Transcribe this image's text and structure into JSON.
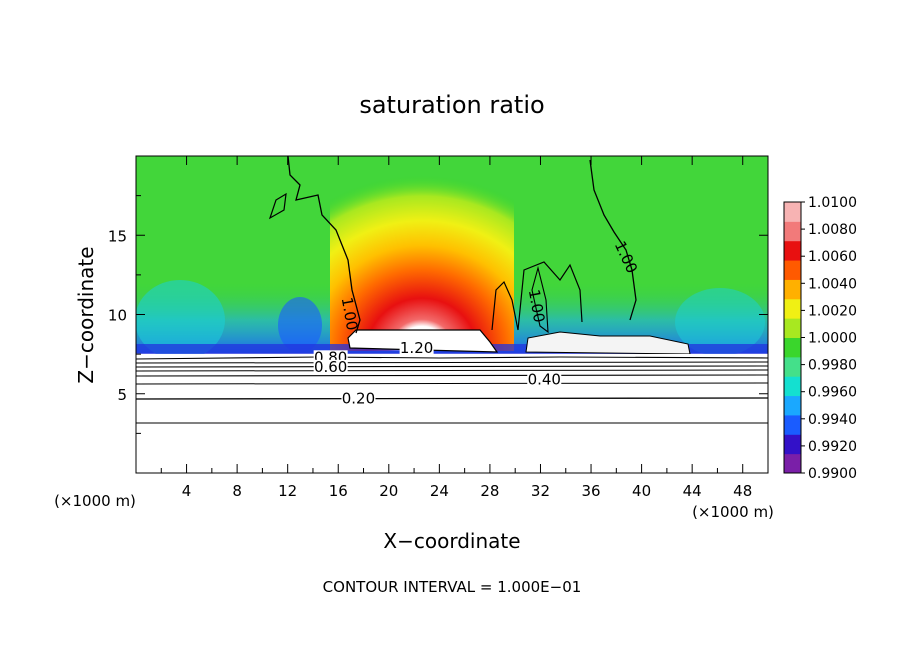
{
  "chart_data": {
    "type": "heatmap",
    "title": "saturation ratio",
    "xlabel": "X−coordinate",
    "ylabel": "Z−coordinate",
    "x_unit_label": "(×1000 m)",
    "x_unit_label_right": "(×1000 m)",
    "footer": "CONTOUR INTERVAL = 1.000E−01",
    "xlim": [
      0,
      50
    ],
    "ylim": [
      0,
      20
    ],
    "x_ticks": [
      4,
      8,
      12,
      16,
      20,
      24,
      28,
      32,
      36,
      40,
      44,
      48
    ],
    "x_tick_labels": [
      "4",
      "8",
      "12",
      "16",
      "20",
      "24",
      "28",
      "32",
      "36",
      "40",
      "44",
      "48"
    ],
    "y_ticks": [
      5,
      10,
      15
    ],
    "y_tick_labels": [
      "5",
      "10",
      "15"
    ],
    "colorbar": {
      "min": 0.99,
      "max": 1.01,
      "labels": [
        "1.0100",
        "1.0080",
        "1.0060",
        "1.0040",
        "1.0020",
        "1.0000",
        "0.9980",
        "0.9960",
        "0.9940",
        "0.9920",
        "0.9900"
      ],
      "colors": [
        "#7a1fa8",
        "#3311c8",
        "#1a5cff",
        "#1aa8ff",
        "#14e0d0",
        "#44e08a",
        "#3ad62c",
        "#a8e820",
        "#f0f014",
        "#ffb000",
        "#ff5a00",
        "#e81010",
        "#f27a7a",
        "#f7b3b3"
      ]
    },
    "contour_labels": [
      {
        "text": "1.20",
        "x": 22.2,
        "y": 7.9
      },
      {
        "text": "0.80",
        "x": 15.4,
        "y": 7.3
      },
      {
        "text": "0.60",
        "x": 15.4,
        "y": 6.7
      },
      {
        "text": "0.40",
        "x": 32.3,
        "y": 5.9
      },
      {
        "text": "0.20",
        "x": 17.6,
        "y": 4.7
      },
      {
        "text": "1.00",
        "x": 16.5,
        "y": 10.3
      },
      {
        "text": "1.00",
        "x": 31.3,
        "y": 10.8
      },
      {
        "text": "1.00",
        "x": 38.4,
        "y": 13.8
      }
    ]
  }
}
